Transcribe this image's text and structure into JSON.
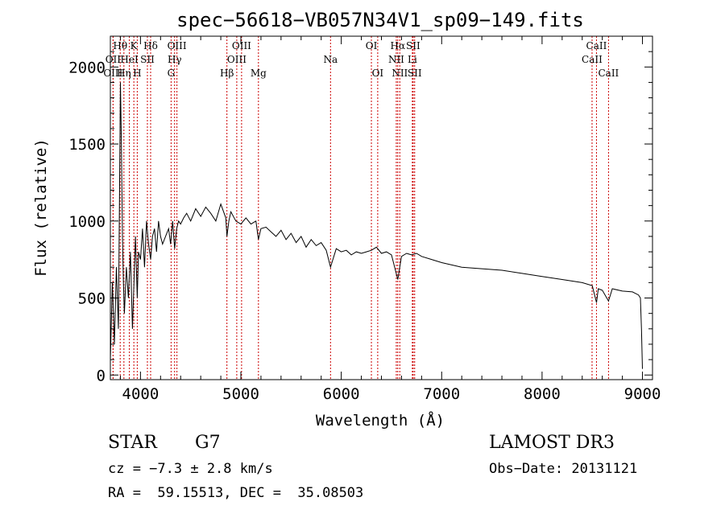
{
  "chart_data": {
    "type": "line",
    "title": "spec−56618−VB057N34V1_sp09−149.fits",
    "xlabel": "Wavelength (Å)",
    "ylabel": "Flux (relative)",
    "xlim": [
      3700,
      9100
    ],
    "ylim": [
      -30,
      2200
    ],
    "x_ticks": [
      4000,
      5000,
      6000,
      7000,
      8000,
      9000
    ],
    "y_ticks": [
      0,
      500,
      1000,
      1500,
      2000
    ],
    "series": [
      {
        "name": "flux",
        "x": [
          3700,
          3720,
          3740,
          3760,
          3780,
          3800,
          3810,
          3820,
          3830,
          3840,
          3860,
          3880,
          3900,
          3920,
          3935,
          3950,
          3968,
          3980,
          4000,
          4020,
          4040,
          4060,
          4080,
          4101,
          4120,
          4140,
          4160,
          4180,
          4200,
          4220,
          4250,
          4280,
          4300,
          4320,
          4340,
          4360,
          4380,
          4400,
          4430,
          4460,
          4500,
          4550,
          4600,
          4650,
          4700,
          4750,
          4800,
          4850,
          4861,
          4880,
          4900,
          4950,
          5000,
          5050,
          5100,
          5150,
          5175,
          5200,
          5250,
          5300,
          5350,
          5400,
          5450,
          5500,
          5550,
          5600,
          5650,
          5700,
          5750,
          5800,
          5850,
          5893,
          5950,
          6000,
          6050,
          6100,
          6150,
          6200,
          6250,
          6300,
          6350,
          6400,
          6450,
          6500,
          6563,
          6600,
          6650,
          6700,
          6750,
          6800,
          6900,
          7000,
          7200,
          7400,
          7600,
          7800,
          8000,
          8200,
          8400,
          8500,
          8542,
          8560,
          8600,
          8662,
          8700,
          8800,
          8900,
          8960,
          8980,
          8990,
          9000
        ],
        "y": [
          100,
          600,
          200,
          700,
          300,
          1900,
          1500,
          900,
          600,
          400,
          700,
          500,
          800,
          300,
          600,
          900,
          500,
          800,
          750,
          950,
          700,
          1000,
          850,
          750,
          900,
          950,
          800,
          1000,
          900,
          850,
          900,
          950,
          850,
          1000,
          820,
          950,
          1000,
          980,
          1020,
          1050,
          1000,
          1080,
          1030,
          1090,
          1050,
          1000,
          1110,
          1020,
          900,
          1000,
          1060,
          1000,
          980,
          1020,
          980,
          1000,
          880,
          950,
          960,
          930,
          900,
          940,
          880,
          920,
          860,
          900,
          830,
          880,
          840,
          860,
          810,
          700,
          820,
          800,
          810,
          780,
          800,
          790,
          800,
          810,
          830,
          790,
          800,
          780,
          620,
          770,
          790,
          780,
          790,
          770,
          750,
          730,
          700,
          690,
          680,
          660,
          640,
          620,
          600,
          580,
          470,
          560,
          550,
          480,
          560,
          545,
          540,
          520,
          500,
          300,
          40
        ]
      }
    ],
    "spectral_lines": [
      {
        "label": "Hθ",
        "wave": 3798,
        "row": 0
      },
      {
        "label": "OII",
        "wave": 3727,
        "row": 1
      },
      {
        "label": "OIII",
        "wave": 3727,
        "row": 2
      },
      {
        "label": "Hη",
        "wave": 3835,
        "row": 2
      },
      {
        "label": "K",
        "wave": 3934,
        "row": 0
      },
      {
        "label": "HeI",
        "wave": 3889,
        "row": 1
      },
      {
        "label": "H",
        "wave": 3968,
        "row": 2
      },
      {
        "label": "SII",
        "wave": 4069,
        "row": 1
      },
      {
        "label": "Hδ",
        "wave": 4101,
        "row": 0
      },
      {
        "label": "OIII",
        "wave": 4363,
        "row": 0
      },
      {
        "label": "Hγ",
        "wave": 4340,
        "row": 1
      },
      {
        "label": "G",
        "wave": 4305,
        "row": 2
      },
      {
        "label": "Hβ",
        "wave": 4861,
        "row": 2
      },
      {
        "label": "OIII",
        "wave": 5007,
        "row": 0
      },
      {
        "label": "OIII",
        "wave": 4959,
        "row": 1
      },
      {
        "label": "Mg",
        "wave": 5175,
        "row": 2
      },
      {
        "label": "Na",
        "wave": 5893,
        "row": 1
      },
      {
        "label": "OI",
        "wave": 6300,
        "row": 0
      },
      {
        "label": "OI",
        "wave": 6363,
        "row": 2
      },
      {
        "label": "Hα",
        "wave": 6563,
        "row": 0
      },
      {
        "label": "NII",
        "wave": 6548,
        "row": 1
      },
      {
        "label": "NII",
        "wave": 6583,
        "row": 2
      },
      {
        "label": "SII",
        "wave": 6716,
        "row": 0
      },
      {
        "label": "Li",
        "wave": 6708,
        "row": 1
      },
      {
        "label": "SII",
        "wave": 6731,
        "row": 2
      },
      {
        "label": "CaII",
        "wave": 8542,
        "row": 0
      },
      {
        "label": "CaII",
        "wave": 8498,
        "row": 1
      },
      {
        "label": "CaII",
        "wave": 8662,
        "row": 2
      }
    ]
  },
  "info": {
    "object_class": "STAR",
    "subclass": "G7",
    "survey": "LAMOST DR3",
    "redshift": "cz = −7.3 ± 2.8 km/s",
    "obs_date": "Obs−Date: 20131121",
    "coords": "RA =  59.15513, DEC =  35.08503"
  },
  "colors": {
    "spectrum": "#000000",
    "line_marker": "#cc0000"
  }
}
